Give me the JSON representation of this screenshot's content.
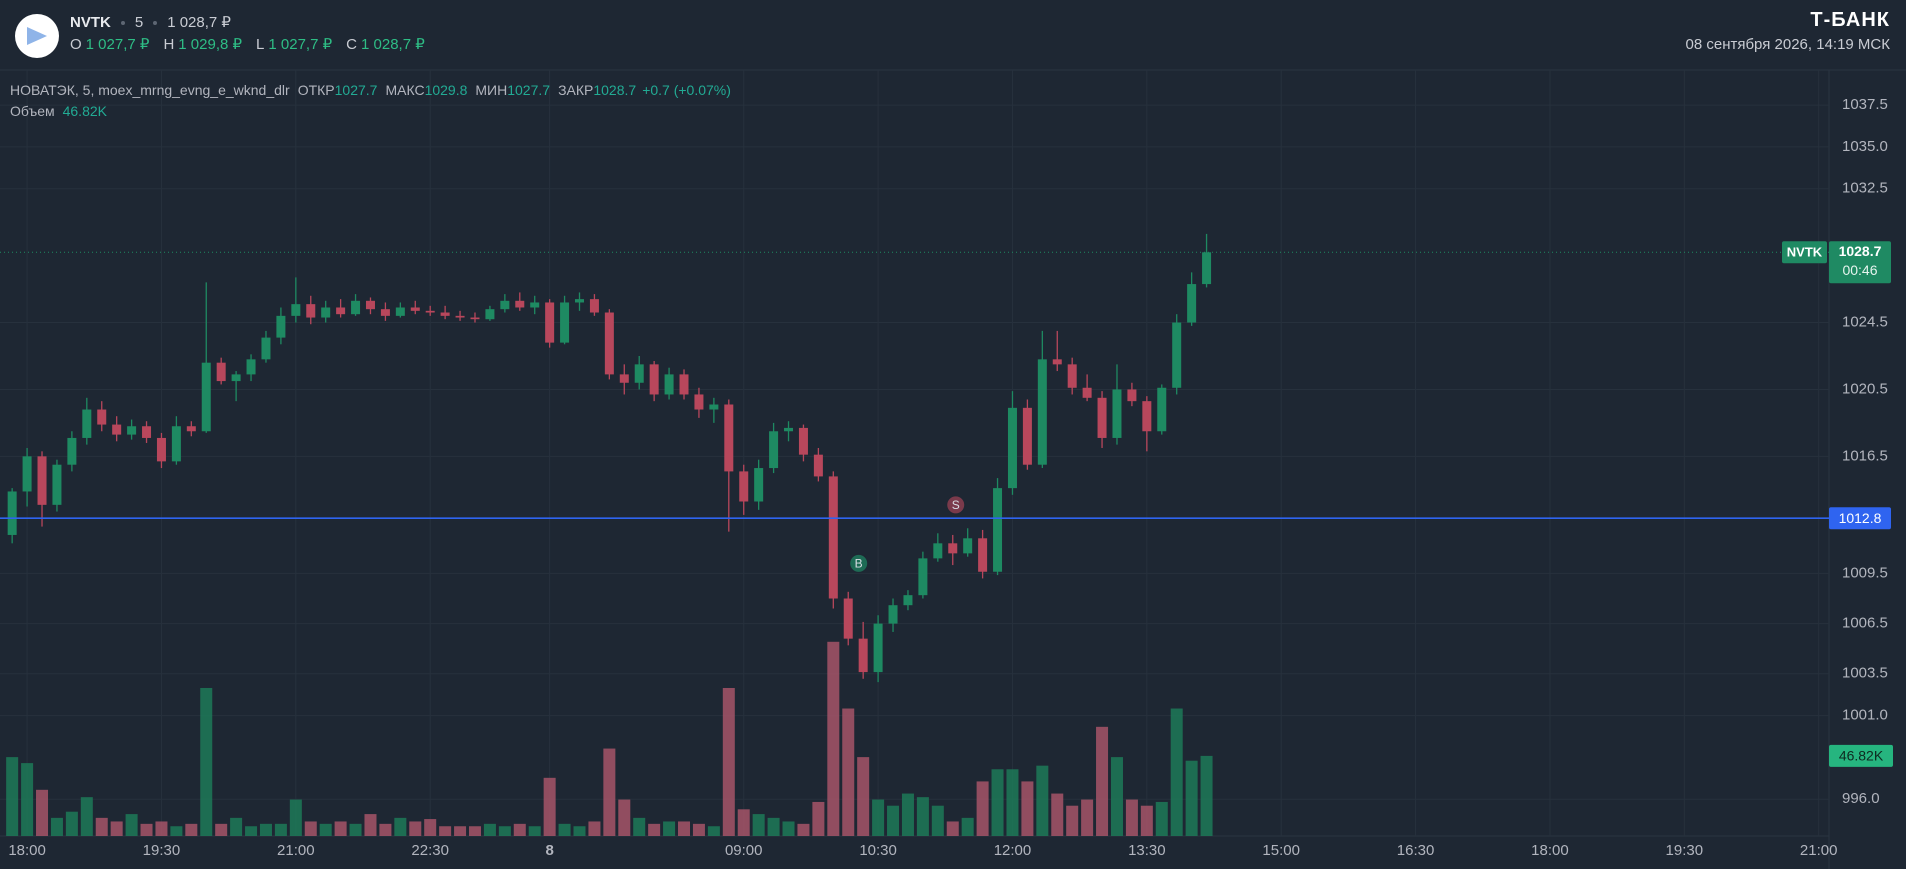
{
  "header": {
    "ticker": "NVTK",
    "interval": "5",
    "price": "1 028,7 ₽",
    "ohlc": [
      {
        "key": "O",
        "value": "1 027,7 ₽"
      },
      {
        "key": "H",
        "value": "1 029,8 ₽"
      },
      {
        "key": "L",
        "value": "1 027,7 ₽"
      },
      {
        "key": "C",
        "value": "1 028,7 ₽"
      }
    ],
    "brand": "Т‑БАНК",
    "datetime": "08 сентября 2026, 14:19 МСК"
  },
  "legend": {
    "name": "НОВАТЭК, 5, moex_mrng_evng_e_wknd_dlr",
    "fields": [
      {
        "key": "ОТКР",
        "value": "1027.7"
      },
      {
        "key": "МАКС",
        "value": "1029.8"
      },
      {
        "key": "МИН",
        "value": "1027.7"
      },
      {
        "key": "ЗАКР",
        "value": "1028.7"
      }
    ],
    "change": "+0.7 (+0.07%)",
    "volume_key": "Объем"
  },
  "chart_data": {
    "type": "candlestick",
    "categories": [
      null,
      "18:00",
      null,
      null,
      null,
      null,
      null,
      null,
      null,
      null,
      "19:30",
      null,
      null,
      null,
      null,
      null,
      null,
      null,
      null,
      "21:00",
      null,
      null,
      null,
      null,
      null,
      null,
      null,
      null,
      "22:30",
      null,
      null,
      null,
      null,
      null,
      null,
      null,
      "8",
      null,
      null,
      null,
      null,
      null,
      null,
      null,
      null,
      null,
      null,
      null,
      null,
      "09:00",
      null,
      null,
      null,
      null,
      null,
      null,
      null,
      null,
      "10:30",
      null,
      null,
      null,
      null,
      null,
      null,
      null,
      null,
      "12:00",
      null,
      null,
      null,
      null,
      null,
      null,
      null,
      null,
      "13:30",
      null,
      null,
      null,
      null
    ],
    "future_labels": [
      "15:00",
      "16:30",
      "18:00",
      "19:30",
      "21:00"
    ],
    "open": [
      1011.8,
      1014.4,
      1016.5,
      1013.6,
      1016.0,
      1017.6,
      1019.3,
      1018.4,
      1017.8,
      1018.3,
      1017.6,
      1016.2,
      1018.3,
      1018.0,
      1022.1,
      1021.0,
      1021.4,
      1022.3,
      1023.6,
      1024.9,
      1025.6,
      1024.8,
      1025.4,
      1025.0,
      1025.8,
      1025.3,
      1024.9,
      1025.4,
      1025.2,
      1025.1,
      1024.9,
      1024.8,
      1024.7,
      1025.3,
      1025.8,
      1025.4,
      1025.7,
      1023.3,
      1025.7,
      1025.9,
      1025.1,
      1021.4,
      1020.9,
      1022.0,
      1020.2,
      1021.4,
      1020.2,
      1019.3,
      1019.6,
      1015.6,
      1013.8,
      1015.8,
      1018.0,
      1018.2,
      1016.6,
      1015.3,
      1008.0,
      1005.6,
      1003.6,
      1006.5,
      1007.6,
      1008.2,
      1010.4,
      1011.3,
      1010.7,
      1011.6,
      1009.6,
      1014.6,
      1019.4,
      1016.0,
      1022.3,
      1022.0,
      1020.6,
      1020.0,
      1017.6,
      1020.5,
      1019.8,
      1018.0,
      1020.6,
      1024.5,
      1026.8
    ],
    "high": [
      1014.6,
      1017.0,
      1016.8,
      1016.3,
      1018.0,
      1020.0,
      1019.8,
      1018.9,
      1018.7,
      1018.6,
      1017.9,
      1018.9,
      1018.6,
      1026.9,
      1022.4,
      1021.6,
      1022.6,
      1024.0,
      1025.4,
      1027.2,
      1026.1,
      1025.8,
      1025.9,
      1026.2,
      1026.0,
      1025.7,
      1025.7,
      1025.8,
      1025.5,
      1025.5,
      1025.2,
      1025.1,
      1025.5,
      1026.2,
      1026.3,
      1026.1,
      1025.9,
      1026.1,
      1026.3,
      1026.2,
      1025.3,
      1022.0,
      1022.5,
      1022.2,
      1021.8,
      1021.7,
      1020.6,
      1020.0,
      1019.9,
      1016.0,
      1016.3,
      1018.5,
      1018.6,
      1018.4,
      1017.0,
      1015.6,
      1008.4,
      1006.6,
      1007.0,
      1008.0,
      1008.5,
      1010.8,
      1011.9,
      1011.8,
      1012.2,
      1012.1,
      1015.2,
      1020.4,
      1019.9,
      1024.0,
      1024.0,
      1022.4,
      1021.4,
      1020.4,
      1022.0,
      1020.9,
      1020.1,
      1020.8,
      1025.0,
      1027.5,
      1029.8
    ],
    "low": [
      1011.3,
      1013.5,
      1012.3,
      1013.2,
      1015.6,
      1017.2,
      1018.0,
      1017.4,
      1017.5,
      1017.3,
      1015.8,
      1016.0,
      1017.7,
      1017.9,
      1020.8,
      1019.8,
      1021.0,
      1022.1,
      1023.2,
      1024.5,
      1024.4,
      1024.5,
      1024.8,
      1024.9,
      1025.0,
      1024.6,
      1024.8,
      1025.0,
      1024.9,
      1024.7,
      1024.6,
      1024.5,
      1024.6,
      1025.1,
      1025.2,
      1025.0,
      1023.0,
      1023.2,
      1025.2,
      1024.9,
      1021.1,
      1020.2,
      1020.5,
      1019.8,
      1019.9,
      1019.9,
      1018.8,
      1018.5,
      1012.0,
      1013.0,
      1013.3,
      1015.5,
      1017.4,
      1016.2,
      1015.0,
      1007.4,
      1005.2,
      1003.2,
      1003.0,
      1006.0,
      1007.3,
      1008.0,
      1010.2,
      1010.0,
      1010.5,
      1009.2,
      1009.4,
      1014.2,
      1015.7,
      1015.8,
      1021.6,
      1020.2,
      1019.8,
      1017.0,
      1017.2,
      1019.5,
      1016.8,
      1017.8,
      1020.2,
      1024.3,
      1026.6
    ],
    "close": [
      1014.4,
      1016.5,
      1013.6,
      1016.0,
      1017.6,
      1019.3,
      1018.4,
      1017.8,
      1018.3,
      1017.6,
      1016.2,
      1018.3,
      1018.0,
      1022.1,
      1021.0,
      1021.4,
      1022.3,
      1023.6,
      1024.9,
      1025.6,
      1024.8,
      1025.4,
      1025.0,
      1025.8,
      1025.3,
      1024.9,
      1025.4,
      1025.2,
      1025.1,
      1024.9,
      1024.8,
      1024.7,
      1025.3,
      1025.8,
      1025.4,
      1025.7,
      1023.3,
      1025.7,
      1025.9,
      1025.1,
      1021.4,
      1020.9,
      1022.0,
      1020.2,
      1021.4,
      1020.2,
      1019.3,
      1019.6,
      1015.6,
      1013.8,
      1015.8,
      1018.0,
      1018.2,
      1016.6,
      1015.3,
      1008.0,
      1005.6,
      1003.6,
      1006.5,
      1007.6,
      1008.2,
      1010.4,
      1011.3,
      1010.7,
      1011.6,
      1009.6,
      1014.6,
      1019.4,
      1016.0,
      1022.3,
      1022.0,
      1020.6,
      1020.0,
      1017.6,
      1020.5,
      1019.8,
      1018.0,
      1020.6,
      1024.5,
      1026.8,
      1028.7
    ],
    "volume": [
      46100,
      42600,
      27000,
      10600,
      14200,
      22700,
      10600,
      8500,
      12800,
      7100,
      8500,
      5700,
      7100,
      86500,
      7100,
      10600,
      5700,
      7100,
      7100,
      21300,
      8500,
      7100,
      8500,
      7100,
      12800,
      7100,
      10600,
      8500,
      9900,
      5700,
      5700,
      5700,
      7100,
      5700,
      7100,
      5700,
      34000,
      7100,
      5700,
      8500,
      51100,
      21300,
      10600,
      7100,
      8500,
      8500,
      7100,
      5700,
      86500,
      15600,
      12800,
      10600,
      8500,
      7100,
      19900,
      113500,
      74500,
      46100,
      21300,
      17700,
      24800,
      22700,
      17700,
      8500,
      10600,
      31900,
      39000,
      39000,
      31900,
      41100,
      24800,
      17700,
      21300,
      63800,
      46100,
      21300,
      17700,
      19900,
      74500,
      44000,
      46820
    ],
    "volume_labels": [
      null,
      null,
      null,
      null,
      null,
      null,
      null,
      null,
      null,
      null,
      null,
      null,
      null,
      null,
      null,
      null,
      null,
      null,
      null,
      null,
      null,
      null,
      null,
      null,
      null,
      null,
      null,
      null,
      null,
      null,
      null,
      null,
      null,
      null,
      null,
      null,
      null,
      null,
      null,
      null,
      null,
      null,
      null,
      null,
      null,
      null,
      null,
      null,
      null,
      null,
      null,
      null,
      null,
      null,
      null,
      null,
      null,
      null,
      null,
      null,
      null,
      null,
      null,
      null,
      null,
      null,
      null,
      null,
      null,
      null,
      null,
      null,
      null,
      null,
      null,
      null,
      null,
      null,
      null,
      null,
      "46.82K"
    ],
    "ylim": [
      993.8,
      1039.6
    ],
    "yticks": [
      {
        "value": 996,
        "label": "996.0"
      },
      {
        "value": 1001,
        "label": "1001.0"
      },
      1003.5,
      1006.5,
      1009.5,
      1016.5,
      1020.5,
      1024.5,
      1032.5,
      {
        "value": 1035,
        "label": "1035.0"
      },
      1037.5
    ],
    "volume_lim": [
      0,
      180000
    ],
    "up_color": "#1e8a62",
    "down_color": "#b8475c",
    "volume_up_color": "#1d7a58",
    "volume_down_color": "#a65568",
    "grid": true,
    "last_price": 1028.7,
    "countdown": "00:46",
    "price_line": {
      "value": 1012.8,
      "color": "#2f64f0"
    },
    "markers": [
      {
        "label": "B",
        "price": 1010.1,
        "color": "#1e6b55"
      },
      {
        "label": "S",
        "price": 1013.6,
        "color": "#7a3a4b"
      }
    ]
  }
}
